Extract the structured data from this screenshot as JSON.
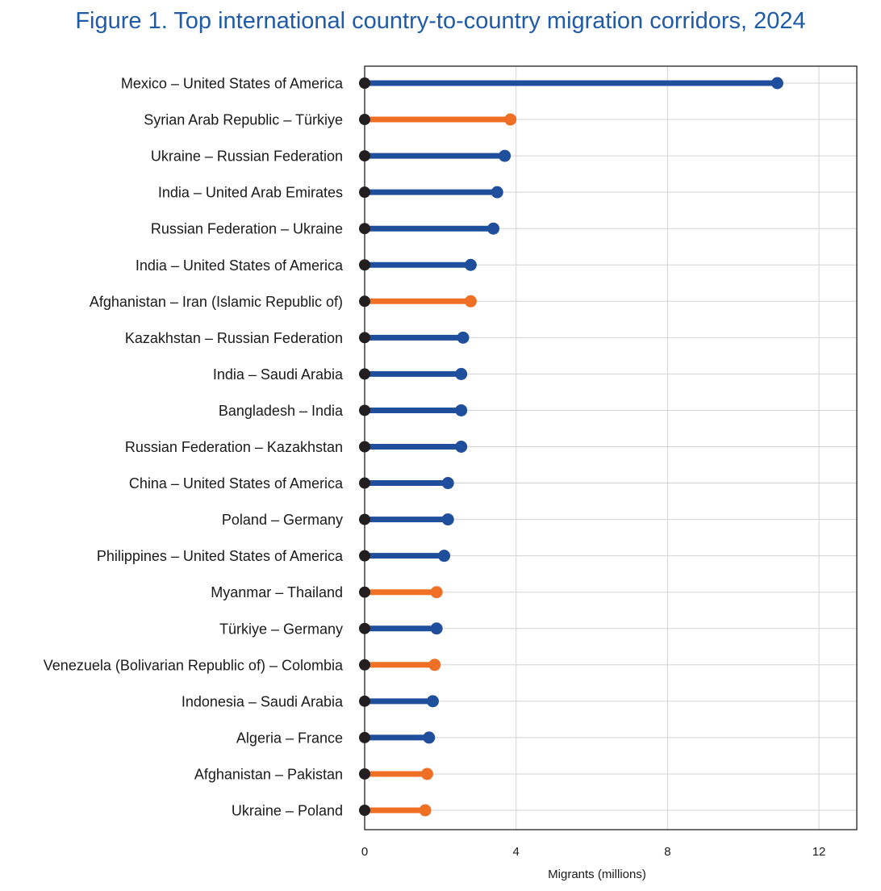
{
  "chart_data": {
    "type": "lollipop",
    "title": "Figure 1. Top international country-to-country migration corridors, 2024",
    "xlabel": "Migrants (millions)",
    "ylabel": "",
    "xlim": [
      0,
      13
    ],
    "xticks": [
      0,
      4,
      8,
      12
    ],
    "grid": true,
    "colors": {
      "primary": "#1f4e9c",
      "highlight": "#ef6f24",
      "origin": "#231f20",
      "grid": "#d3d3d3",
      "title": "#1f5ba6"
    },
    "categories": [
      "Mexico – United States of America",
      "Syrian Arab Republic – Türkiye",
      "Ukraine – Russian Federation",
      "India – United Arab Emirates",
      "Russian Federation – Ukraine",
      "India – United States of America",
      "Afghanistan – Iran (Islamic Republic of)",
      "Kazakhstan – Russian Federation",
      "India – Saudi Arabia",
      "Bangladesh – India",
      "Russian Federation – Kazakhstan",
      "China – United States of America",
      "Poland – Germany",
      "Philippines – United States of America",
      "Myanmar – Thailand",
      "Türkiye – Germany",
      "Venezuela (Bolivarian Republic of) – Colombia",
      "Indonesia – Saudi Arabia",
      "Algeria – France",
      "Afghanistan – Pakistan",
      "Ukraine – Poland"
    ],
    "values": [
      10.9,
      3.85,
      3.7,
      3.5,
      3.4,
      2.8,
      2.8,
      2.6,
      2.55,
      2.55,
      2.55,
      2.2,
      2.2,
      2.1,
      1.9,
      1.9,
      1.85,
      1.8,
      1.7,
      1.65,
      1.6
    ],
    "highlighted": [
      false,
      true,
      false,
      false,
      false,
      false,
      true,
      false,
      false,
      false,
      false,
      false,
      false,
      false,
      true,
      false,
      true,
      false,
      false,
      true,
      true
    ]
  }
}
